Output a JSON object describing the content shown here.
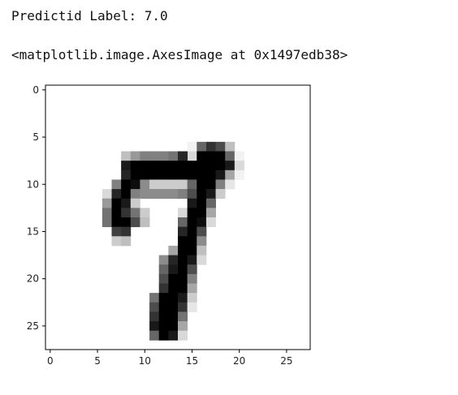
{
  "output": {
    "prediction_line": "Predictid Label: 7.0",
    "repr_line": "<matplotlib.image.AxesImage at 0x1497edb38>"
  },
  "chart_data": {
    "type": "heatmap",
    "title": "",
    "xlabel": "",
    "ylabel": "",
    "colormap": "gray_r",
    "image_size": [
      28,
      28
    ],
    "x_ticks": [
      0,
      5,
      10,
      15,
      20,
      25
    ],
    "y_ticks": [
      0,
      5,
      10,
      15,
      20,
      25
    ],
    "xlim": [
      -0.5,
      27.5
    ],
    "ylim": [
      27.5,
      -0.5
    ],
    "grid": false,
    "pixels": [
      [
        6,
        15,
        0.05
      ],
      [
        7,
        15,
        0.15
      ],
      [
        6,
        16,
        0.6
      ],
      [
        6,
        17,
        0.8
      ],
      [
        6,
        18,
        0.7
      ],
      [
        6,
        19,
        0.25
      ],
      [
        7,
        8,
        0.25
      ],
      [
        7,
        9,
        0.4
      ],
      [
        7,
        10,
        0.5
      ],
      [
        7,
        11,
        0.5
      ],
      [
        7,
        12,
        0.5
      ],
      [
        7,
        13,
        0.55
      ],
      [
        7,
        14,
        0.85
      ],
      [
        7,
        16,
        1.0
      ],
      [
        7,
        17,
        1.0
      ],
      [
        7,
        18,
        1.0
      ],
      [
        7,
        19,
        0.6
      ],
      [
        7,
        20,
        0.05
      ],
      [
        8,
        8,
        0.9
      ],
      [
        8,
        9,
        1.0
      ],
      [
        8,
        10,
        1.0
      ],
      [
        8,
        11,
        1.0
      ],
      [
        8,
        12,
        1.0
      ],
      [
        8,
        13,
        1.0
      ],
      [
        8,
        14,
        1.0
      ],
      [
        8,
        15,
        1.0
      ],
      [
        8,
        16,
        1.0
      ],
      [
        8,
        17,
        1.0
      ],
      [
        8,
        18,
        1.0
      ],
      [
        8,
        19,
        0.9
      ],
      [
        8,
        20,
        0.15
      ],
      [
        9,
        8,
        0.85
      ],
      [
        9,
        9,
        1.0
      ],
      [
        9,
        10,
        1.0
      ],
      [
        9,
        11,
        1.0
      ],
      [
        9,
        12,
        1.0
      ],
      [
        9,
        13,
        1.0
      ],
      [
        9,
        14,
        1.0
      ],
      [
        9,
        15,
        1.0
      ],
      [
        9,
        16,
        1.0
      ],
      [
        9,
        17,
        1.0
      ],
      [
        9,
        18,
        0.9
      ],
      [
        9,
        19,
        0.35
      ],
      [
        9,
        20,
        0.05
      ],
      [
        10,
        7,
        0.5
      ],
      [
        10,
        8,
        1.0
      ],
      [
        10,
        9,
        0.95
      ],
      [
        10,
        10,
        0.45
      ],
      [
        10,
        11,
        0.2
      ],
      [
        10,
        12,
        0.2
      ],
      [
        10,
        13,
        0.2
      ],
      [
        10,
        14,
        0.2
      ],
      [
        10,
        15,
        0.6
      ],
      [
        10,
        16,
        1.0
      ],
      [
        10,
        17,
        1.0
      ],
      [
        10,
        18,
        0.5
      ],
      [
        10,
        19,
        0.1
      ],
      [
        11,
        6,
        0.15
      ],
      [
        11,
        7,
        0.85
      ],
      [
        11,
        8,
        1.0
      ],
      [
        11,
        9,
        0.5
      ],
      [
        11,
        10,
        0.45
      ],
      [
        11,
        11,
        0.45
      ],
      [
        11,
        12,
        0.45
      ],
      [
        11,
        13,
        0.45
      ],
      [
        11,
        14,
        0.5
      ],
      [
        11,
        15,
        0.7
      ],
      [
        11,
        16,
        1.0
      ],
      [
        11,
        17,
        0.9
      ],
      [
        11,
        18,
        0.2
      ],
      [
        12,
        6,
        0.4
      ],
      [
        12,
        7,
        1.0
      ],
      [
        12,
        8,
        0.9
      ],
      [
        12,
        9,
        0.2
      ],
      [
        12,
        15,
        0.9
      ],
      [
        12,
        16,
        1.0
      ],
      [
        12,
        17,
        0.6
      ],
      [
        13,
        6,
        0.55
      ],
      [
        13,
        7,
        1.0
      ],
      [
        13,
        8,
        0.8
      ],
      [
        13,
        9,
        0.55
      ],
      [
        13,
        10,
        0.2
      ],
      [
        13,
        14,
        0.15
      ],
      [
        13,
        15,
        1.0
      ],
      [
        13,
        16,
        1.0
      ],
      [
        13,
        17,
        0.35
      ],
      [
        14,
        6,
        0.55
      ],
      [
        14,
        7,
        1.0
      ],
      [
        14,
        8,
        1.0
      ],
      [
        14,
        9,
        0.7
      ],
      [
        14,
        10,
        0.25
      ],
      [
        14,
        14,
        0.6
      ],
      [
        14,
        15,
        1.0
      ],
      [
        14,
        16,
        0.95
      ],
      [
        14,
        17,
        0.15
      ],
      [
        15,
        7,
        0.75
      ],
      [
        15,
        8,
        0.8
      ],
      [
        15,
        14,
        0.85
      ],
      [
        15,
        15,
        1.0
      ],
      [
        15,
        16,
        0.7
      ],
      [
        16,
        7,
        0.2
      ],
      [
        16,
        8,
        0.25
      ],
      [
        16,
        14,
        1.0
      ],
      [
        16,
        15,
        1.0
      ],
      [
        16,
        16,
        0.45
      ],
      [
        17,
        13,
        0.35
      ],
      [
        17,
        14,
        1.0
      ],
      [
        17,
        15,
        1.0
      ],
      [
        17,
        16,
        0.25
      ],
      [
        18,
        12,
        0.45
      ],
      [
        18,
        13,
        0.85
      ],
      [
        18,
        14,
        1.0
      ],
      [
        18,
        15,
        0.9
      ],
      [
        18,
        16,
        0.15
      ],
      [
        19,
        12,
        0.6
      ],
      [
        19,
        13,
        0.9
      ],
      [
        19,
        14,
        1.0
      ],
      [
        19,
        15,
        0.7
      ],
      [
        20,
        12,
        0.7
      ],
      [
        20,
        13,
        1.0
      ],
      [
        20,
        14,
        1.0
      ],
      [
        20,
        15,
        0.5
      ],
      [
        21,
        12,
        0.8
      ],
      [
        21,
        13,
        1.0
      ],
      [
        21,
        14,
        1.0
      ],
      [
        21,
        15,
        0.35
      ],
      [
        22,
        11,
        0.55
      ],
      [
        22,
        12,
        1.0
      ],
      [
        22,
        13,
        1.0
      ],
      [
        22,
        14,
        0.9
      ],
      [
        22,
        15,
        0.2
      ],
      [
        23,
        11,
        0.7
      ],
      [
        23,
        12,
        1.0
      ],
      [
        23,
        13,
        1.0
      ],
      [
        23,
        14,
        0.8
      ],
      [
        23,
        15,
        0.1
      ],
      [
        24,
        11,
        0.8
      ],
      [
        24,
        12,
        1.0
      ],
      [
        24,
        13,
        1.0
      ],
      [
        24,
        14,
        0.55
      ],
      [
        25,
        11,
        0.9
      ],
      [
        25,
        12,
        1.0
      ],
      [
        25,
        13,
        1.0
      ],
      [
        25,
        14,
        0.35
      ],
      [
        26,
        11,
        0.6
      ],
      [
        26,
        12,
        1.0
      ],
      [
        26,
        13,
        0.9
      ],
      [
        26,
        14,
        0.15
      ]
    ]
  }
}
